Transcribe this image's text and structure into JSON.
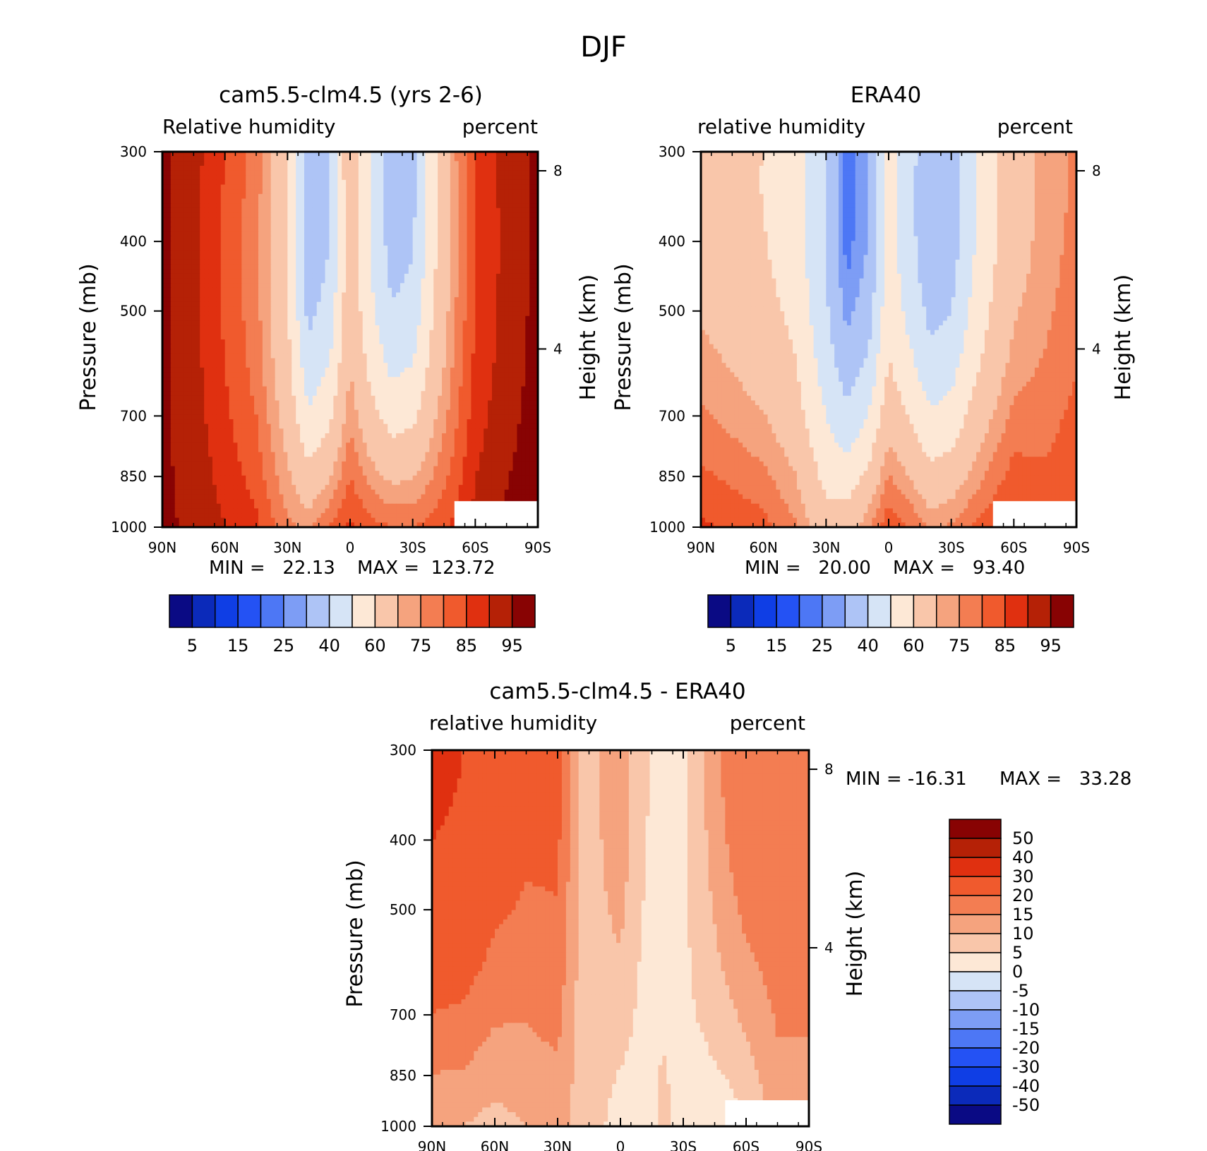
{
  "figure_title": "DJF",
  "chart_data": [
    {
      "type": "heatmap",
      "title": "cam5.5-clm4.5 (yrs 2-6)",
      "left_label": "Relative humidity",
      "right_label": "percent",
      "xlabel": "",
      "ylabel": "Pressure (mb)",
      "y2label": "Height (km)",
      "x_ticks": [
        "90N",
        "60N",
        "30N",
        "0",
        "30S",
        "60S",
        "90S"
      ],
      "y_ticks": [
        "300",
        "400",
        "500",
        "700",
        "850",
        "1000"
      ],
      "y2_ticks": [
        "8",
        "4"
      ],
      "min_text": "MIN =   22.13",
      "max_text": "MAX =  123.72",
      "min": 22.13,
      "max": 123.72,
      "colorbar": {
        "orientation": "horizontal",
        "labels": [
          "5",
          "15",
          "25",
          "40",
          "60",
          "75",
          "85",
          "95"
        ]
      },
      "profile": {
        "lat": [
          90,
          75,
          60,
          45,
          30,
          20,
          10,
          0,
          -10,
          -20,
          -30,
          -40,
          -50,
          -60,
          -75,
          -90
        ],
        "sfc": [
          96,
          94,
          90,
          86,
          76,
          74,
          80,
          86,
          82,
          80,
          80,
          82,
          86,
          92,
          96,
          98
        ],
        "upper": [
          96,
          92,
          85,
          78,
          62,
          32,
          40,
          70,
          50,
          35,
          38,
          58,
          74,
          86,
          92,
          96
        ]
      }
    },
    {
      "type": "heatmap",
      "title": "ERA40",
      "left_label": "relative humidity",
      "right_label": "percent",
      "xlabel": "",
      "ylabel": "Pressure (mb)",
      "y2label": "Height (km)",
      "x_ticks": [
        "90N",
        "60N",
        "30N",
        "0",
        "30S",
        "60S",
        "90S"
      ],
      "y_ticks": [
        "300",
        "400",
        "500",
        "700",
        "850",
        "1000"
      ],
      "y2_ticks": [
        "8",
        "4"
      ],
      "min_text": "MIN =   20.00",
      "max_text": "MAX =   93.40",
      "min": 20.0,
      "max": 93.4,
      "colorbar": {
        "orientation": "horizontal",
        "labels": [
          "5",
          "15",
          "25",
          "40",
          "60",
          "75",
          "85",
          "95"
        ]
      },
      "profile": {
        "lat": [
          90,
          75,
          60,
          45,
          30,
          20,
          10,
          0,
          -10,
          -20,
          -30,
          -40,
          -50,
          -60,
          -75,
          -90
        ],
        "sfc": [
          86,
          84,
          82,
          76,
          64,
          66,
          74,
          84,
          80,
          74,
          76,
          80,
          84,
          88,
          84,
          86
        ],
        "upper": [
          64,
          62,
          60,
          56,
          40,
          22,
          30,
          56,
          44,
          32,
          34,
          48,
          58,
          66,
          72,
          76
        ]
      }
    },
    {
      "type": "heatmap",
      "title": "cam5.5-clm4.5 - ERA40",
      "left_label": "relative humidity",
      "right_label": "percent",
      "xlabel": "",
      "ylabel": "Pressure (mb)",
      "y2label": "Height (km)",
      "x_ticks": [
        "90N",
        "60N",
        "30N",
        "0",
        "30S",
        "60S",
        "90S"
      ],
      "y_ticks": [
        "300",
        "400",
        "500",
        "700",
        "850",
        "1000"
      ],
      "y2_ticks": [
        "8",
        "4"
      ],
      "min_text": "MIN = -16.31",
      "max_text": "MAX =   33.28",
      "min": -16.31,
      "max": 33.28,
      "colorbar": {
        "orientation": "vertical",
        "labels": [
          "50",
          "40",
          "30",
          "20",
          "15",
          "10",
          "5",
          "0",
          "-5",
          "-10",
          "-15",
          "-20",
          "-30",
          "-40",
          "-50"
        ]
      }
    }
  ]
}
